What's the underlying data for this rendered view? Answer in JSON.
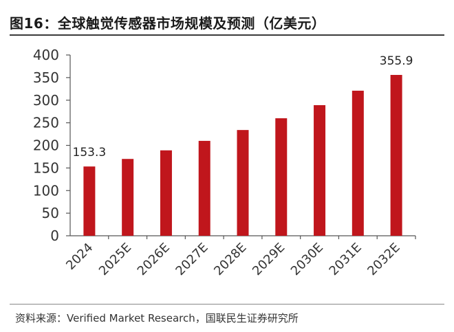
{
  "title": "图16：全球触觉传感器市场规模及预测（亿美元）",
  "source": "资料来源：Verified Market Research，国联民生证券研究所",
  "chart_data": {
    "type": "bar",
    "title": "全球触觉传感器市场规模及预测（亿美元）",
    "xlabel": "",
    "ylabel": "",
    "categories": [
      "2024",
      "2025E",
      "2026E",
      "2027E",
      "2028E",
      "2029E",
      "2030E",
      "2031E",
      "2032E"
    ],
    "values": [
      153.3,
      170,
      189,
      210,
      234,
      260,
      289,
      321,
      355.9
    ],
    "data_labels": [
      "153.3",
      "",
      "",
      "",
      "",
      "",
      "",
      "",
      "355.9"
    ],
    "ylim": [
      0,
      400
    ],
    "yticks": [
      0,
      50,
      100,
      150,
      200,
      250,
      300,
      350,
      400
    ],
    "bar_color": "#c0161c",
    "grid": false,
    "legend": "none"
  }
}
